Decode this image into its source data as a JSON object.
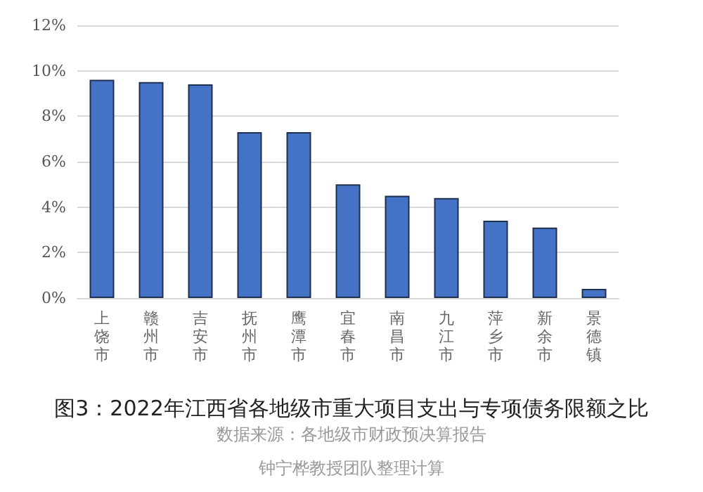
{
  "chart_data": {
    "type": "bar",
    "title": "图3：2022年江西省各地级市重大项目支出与专项债务限额之比",
    "categories": [
      "上饶市",
      "赣州市",
      "吉安市",
      "抚州市",
      "鹰潭市",
      "宜春市",
      "南昌市",
      "九江市",
      "萍乡市",
      "新余市",
      "景德镇"
    ],
    "values": [
      9.6,
      9.5,
      9.4,
      7.3,
      7.3,
      5.0,
      4.5,
      4.4,
      3.4,
      3.1,
      0.4
    ],
    "color": "#4472c4",
    "ylim": [
      0,
      12
    ],
    "yticks": [
      {
        "value": 0,
        "label": "0%"
      },
      {
        "value": 2,
        "label": "2%"
      },
      {
        "value": 4,
        "label": "4%"
      },
      {
        "value": 6,
        "label": "6%"
      },
      {
        "value": 8,
        "label": "8%"
      },
      {
        "value": 10,
        "label": "10%"
      },
      {
        "value": 12,
        "label": "12%"
      }
    ],
    "grid": "y",
    "annotations": [
      "数据来源：各地级市财政预决算报告",
      "钟宁桦教授团队整理计算"
    ]
  }
}
